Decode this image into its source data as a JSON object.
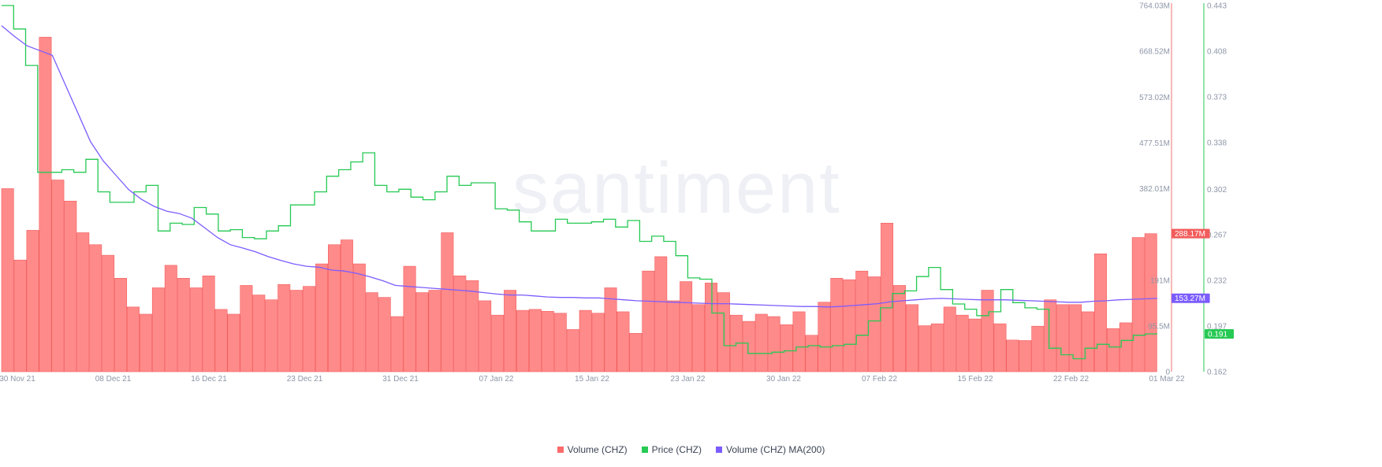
{
  "watermark": "santiment",
  "legend": [
    {
      "label": "Volume (CHZ)",
      "color": "#ff6b6b"
    },
    {
      "label": "Price (CHZ)",
      "color": "#26c953"
    },
    {
      "label": "Volume (CHZ) MA(200)",
      "color": "#7c5cff"
    }
  ],
  "chart_data": {
    "type": "bar",
    "title": "",
    "x_tick_labels": [
      "30 Nov 21",
      "08 Dec 21",
      "16 Dec 21",
      "23 Dec 21",
      "31 Dec 21",
      "07 Jan 22",
      "15 Jan 22",
      "23 Jan 22",
      "30 Jan 22",
      "07 Feb 22",
      "15 Feb 22",
      "22 Feb 22",
      "01 Mar 22"
    ],
    "volume_axis": {
      "ticks": [
        "764.03M",
        "668.52M",
        "573.02M",
        "477.51M",
        "382.01M",
        "191M",
        "95.5M",
        "0"
      ],
      "range": [
        0,
        764.03
      ]
    },
    "price_axis": {
      "ticks": [
        "0.443",
        "0.408",
        "0.373",
        "0.338",
        "0.302",
        "0.267",
        "0.232",
        "0.197",
        "0.162"
      ],
      "range": [
        0.162,
        0.443
      ]
    },
    "last_values": {
      "volume": "288.17M",
      "ma": "153.27M",
      "price": "0.191"
    },
    "series": [
      {
        "name": "Volume (CHZ)",
        "kind": "bar",
        "unit": "M",
        "values": [
          382,
          233,
          295,
          698,
          400,
          356,
          290,
          265,
          243,
          195,
          135,
          120,
          175,
          222,
          195,
          175,
          200,
          130,
          120,
          180,
          160,
          150,
          182,
          170,
          178,
          225,
          265,
          275,
          225,
          165,
          155,
          115,
          220,
          165,
          170,
          290,
          200,
          190,
          148,
          118,
          170,
          128,
          130,
          126,
          122,
          88,
          128,
          122,
          175,
          125,
          80,
          210,
          240,
          148,
          188,
          140,
          185,
          165,
          118,
          105,
          120,
          115,
          98,
          125,
          76,
          145,
          195,
          192,
          210,
          198,
          310,
          180,
          140,
          96,
          100,
          135,
          118,
          110,
          170,
          100,
          66,
          65,
          95,
          150,
          140,
          140,
          125,
          246,
          90,
          102,
          280,
          288
        ]
      },
      {
        "name": "Price (CHZ)",
        "kind": "step",
        "values": [
          0.443,
          0.425,
          0.397,
          0.315,
          0.315,
          0.317,
          0.315,
          0.325,
          0.3,
          0.292,
          0.292,
          0.3,
          0.305,
          0.27,
          0.276,
          0.275,
          0.288,
          0.283,
          0.27,
          0.271,
          0.265,
          0.264,
          0.27,
          0.274,
          0.29,
          0.29,
          0.3,
          0.312,
          0.317,
          0.323,
          0.33,
          0.305,
          0.3,
          0.302,
          0.296,
          0.294,
          0.3,
          0.312,
          0.305,
          0.307,
          0.307,
          0.287,
          0.286,
          0.277,
          0.27,
          0.27,
          0.279,
          0.276,
          0.276,
          0.277,
          0.279,
          0.273,
          0.278,
          0.262,
          0.266,
          0.262,
          0.251,
          0.234,
          0.233,
          0.207,
          0.182,
          0.184,
          0.176,
          0.176,
          0.177,
          0.178,
          0.181,
          0.182,
          0.181,
          0.182,
          0.183,
          0.19,
          0.201,
          0.211,
          0.222,
          0.224,
          0.235,
          0.242,
          0.225,
          0.214,
          0.21,
          0.205,
          0.208,
          0.225,
          0.215,
          0.211,
          0.21,
          0.18,
          0.175,
          0.172,
          0.18,
          0.183,
          0.181,
          0.186,
          0.19,
          0.191
        ]
      },
      {
        "name": "Volume (CHZ) MA(200)",
        "kind": "line",
        "unit": "M",
        "values": [
          722,
          700,
          680,
          670,
          660,
          600,
          540,
          480,
          440,
          410,
          380,
          360,
          345,
          335,
          330,
          320,
          300,
          280,
          265,
          258,
          250,
          240,
          232,
          225,
          220,
          218,
          212,
          210,
          205,
          198,
          190,
          180,
          178,
          176,
          174,
          172,
          170,
          168,
          165,
          162,
          160,
          160,
          158,
          156,
          155,
          155,
          154,
          154,
          152,
          150,
          148,
          147,
          146,
          145,
          144,
          143,
          142,
          142,
          141,
          140,
          139,
          138,
          137,
          136,
          136,
          135,
          136,
          138,
          140,
          142,
          146,
          148,
          150,
          152,
          153,
          152,
          151,
          150,
          150,
          150,
          149,
          148,
          147,
          146,
          145,
          145,
          147,
          148,
          150,
          151,
          152,
          153
        ]
      }
    ]
  }
}
